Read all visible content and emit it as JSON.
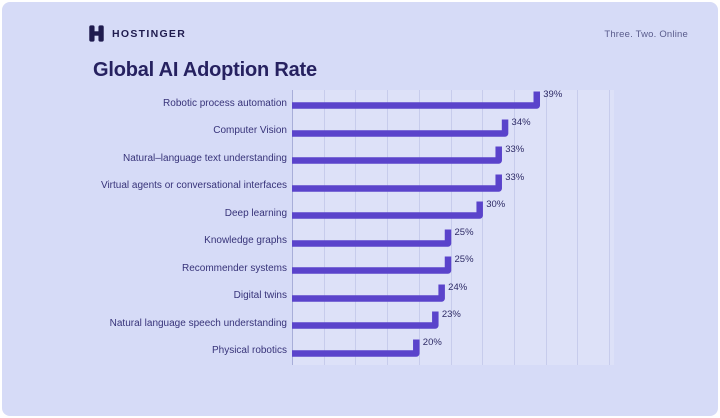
{
  "header": {
    "brand": "HOSTINGER",
    "tagline": "Three. Two. Online"
  },
  "chart_data": {
    "type": "bar",
    "orientation": "horizontal",
    "title": "Global AI Adoption Rate",
    "categories": [
      "Robotic process automation",
      "Computer Vision",
      "Natural–language text understanding",
      "Virtual agents or conversational interfaces",
      "Deep learning",
      "Knowledge graphs",
      "Recommender systems",
      "Digital twins",
      "Natural language speech understanding",
      "Physical robotics"
    ],
    "values": [
      39,
      34,
      33,
      33,
      30,
      25,
      25,
      24,
      23,
      20
    ],
    "unit": "%",
    "xlabel": "",
    "ylabel": "",
    "xlim": [
      0,
      50
    ],
    "grid": true,
    "grid_step": 5,
    "legend": "none",
    "value_labels_shown": true
  },
  "colors": {
    "background": "#d6dbf7",
    "bar": "#5a43cb",
    "title_text": "#262160",
    "label_text": "#373379",
    "axis_line": "#a8aed9",
    "gridline": "#c7ccec",
    "brand_text": "#1f1b4e"
  }
}
